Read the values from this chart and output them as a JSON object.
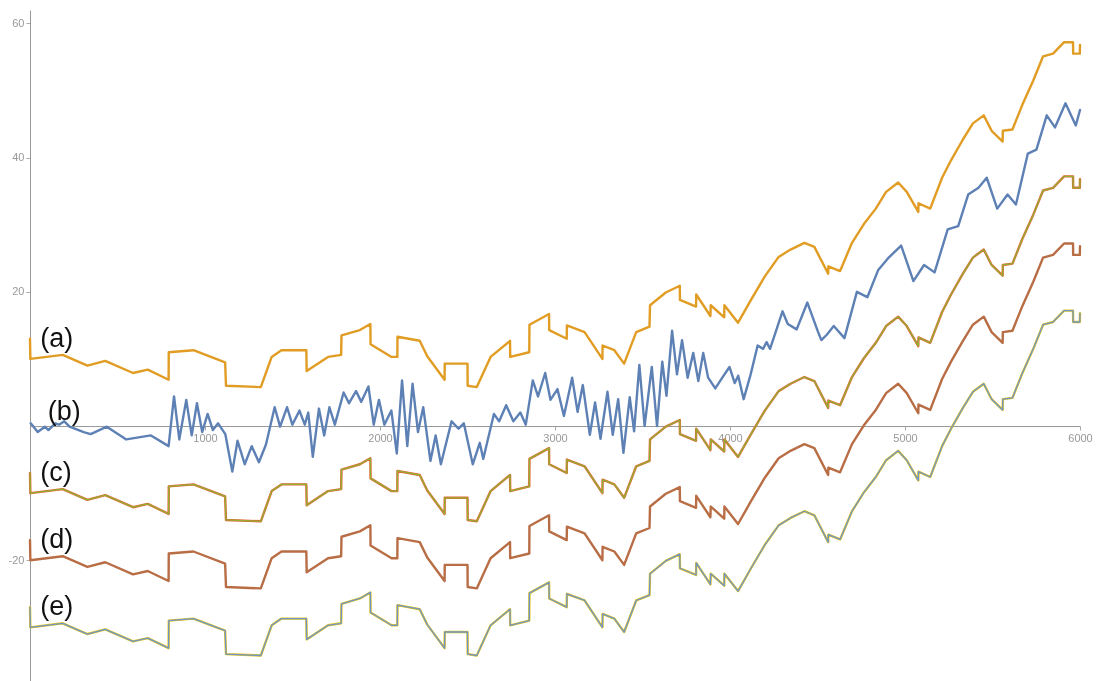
{
  "chart_data": {
    "type": "line",
    "x": [
      0,
      2,
      187,
      328,
      430,
      589,
      673,
      792,
      793,
      934,
      1115,
      1120,
      1319,
      1381,
      1437,
      1579,
      1581,
      1703,
      1778,
      1780,
      1885,
      1945,
      1946,
      2066,
      2099,
      2100,
      2227,
      2270,
      2369,
      2370,
      2500,
      2501,
      2553,
      2632,
      2743,
      2744,
      2853,
      2854,
      2966,
      2967,
      3067,
      3068,
      3169,
      3271,
      3272,
      3339,
      3395,
      3464,
      3540,
      3543,
      3633,
      3713,
      3714,
      3806,
      3807,
      3888,
      3890,
      3967,
      3968,
      4046,
      4120,
      4199,
      4278,
      4346,
      4425,
      4482,
      4561,
      4562,
      4629,
      4697,
      4765,
      4833,
      4892,
      4961,
      5010,
      5076,
      5077,
      5144,
      5212,
      5263,
      5331,
      5388,
      5450,
      5495,
      5558,
      5559,
      5614,
      5671,
      5733,
      5789,
      5846,
      5909,
      5960,
      5961,
      5999,
      6000
    ],
    "series": [
      {
        "color": "#e19c24",
        "values": [
          13.0,
          10.0,
          10.6,
          9.0,
          9.7,
          7.9,
          8.4,
          6.9,
          11.0,
          11.3,
          9.5,
          6.0,
          5.8,
          10.3,
          11.3,
          11.3,
          8.2,
          10.3,
          10.6,
          13.5,
          14.3,
          15.2,
          12.2,
          10.3,
          10.3,
          13.3,
          12.7,
          10.4,
          6.9,
          9.3,
          9.3,
          6.0,
          5.8,
          10.3,
          12.7,
          10.3,
          11.0,
          15.1,
          16.7,
          14.3,
          13.0,
          15.0,
          14.0,
          10.0,
          12.0,
          11.3,
          9.3,
          14.0,
          14.8,
          18.0,
          19.9,
          20.9,
          18.8,
          17.8,
          19.6,
          16.4,
          18.0,
          16.2,
          18.0,
          15.4,
          18.8,
          22.3,
          25.2,
          26.3,
          27.3,
          26.7,
          22.7,
          23.8,
          23.1,
          27.3,
          30.1,
          32.4,
          34.9,
          36.3,
          34.9,
          31.9,
          33.2,
          32.4,
          37.0,
          39.6,
          42.7,
          45.1,
          46.3,
          44.0,
          42.4,
          44.0,
          44.2,
          47.9,
          51.5,
          55.1,
          55.5,
          57.2,
          57.2,
          55.5,
          55.5,
          56.8
        ]
      },
      {
        "color": "#5e81b5",
        "x": [
          4,
          44,
          85,
          105,
          145,
          166,
          196,
          226,
          307,
          347,
          439,
          550,
          691,
          792,
          823,
          853,
          893,
          924,
          954,
          984,
          1015,
          1045,
          1075,
          1116,
          1156,
          1186,
          1227,
          1267,
          1308,
          1348,
          1398,
          1429,
          1469,
          1499,
          1540,
          1570,
          1590,
          1616,
          1651,
          1681,
          1711,
          1742,
          1792,
          1823,
          1863,
          1893,
          1934,
          1964,
          1994,
          2025,
          2065,
          2096,
          2126,
          2156,
          2186,
          2217,
          2247,
          2288,
          2318,
          2348,
          2409,
          2449,
          2479,
          2530,
          2570,
          2590,
          2651,
          2681,
          2721,
          2762,
          2802,
          2833,
          2873,
          2903,
          2944,
          2974,
          3014,
          3051,
          3098,
          3129,
          3159,
          3199,
          3229,
          3260,
          3300,
          3330,
          3361,
          3391,
          3427,
          3452,
          3482,
          3512,
          3553,
          3583,
          3613,
          3637,
          3669,
          3697,
          3726,
          3758,
          3790,
          3819,
          3847,
          3875,
          3916,
          3956,
          3997,
          4027,
          4047,
          4078,
          4118,
          4158,
          4189,
          4209,
          4229,
          4300,
          4330,
          4381,
          4442,
          4502,
          4522,
          4553,
          4593,
          4654,
          4725,
          4785,
          4846,
          4907,
          4978,
          5048,
          5109,
          5169,
          5244,
          5304,
          5361,
          5420,
          5467,
          5527,
          5586,
          5634,
          5702,
          5751,
          5810,
          5857,
          5917,
          5976,
          6000
        ],
        "values": [
          0.4,
          -0.9,
          -0.1,
          -0.6,
          0.4,
          0.2,
          0.7,
          -0.1,
          -0.9,
          -1.2,
          -0.1,
          -2.0,
          -1.4,
          -3.0,
          4.4,
          -2.0,
          3.9,
          -1.4,
          3.4,
          -0.9,
          1.8,
          -0.6,
          0.4,
          -1.2,
          -6.8,
          -2.2,
          -5.7,
          -3.0,
          -5.4,
          -2.8,
          2.8,
          -0.1,
          2.8,
          0.2,
          2.3,
          0.2,
          2.0,
          -4.6,
          2.6,
          -1.4,
          2.8,
          0.2,
          5.0,
          3.4,
          5.2,
          3.6,
          5.9,
          0.2,
          3.9,
          0.2,
          2.3,
          -4.1,
          6.8,
          -3.0,
          6.3,
          -0.9,
          2.8,
          -5.2,
          -1.4,
          -5.7,
          0.7,
          -0.4,
          0.4,
          -5.7,
          -2.5,
          -4.9,
          1.8,
          0.7,
          3.1,
          0.7,
          2.0,
          0.2,
          6.8,
          4.4,
          7.9,
          3.9,
          5.5,
          1.5,
          7.2,
          2.1,
          6.1,
          -1.3,
          3.5,
          -1.9,
          5.1,
          -1.3,
          4.0,
          -4.0,
          4.3,
          -0.8,
          9.1,
          0.0,
          8.8,
          0.0,
          9.6,
          4.5,
          14.2,
          7.7,
          12.8,
          7.2,
          10.9,
          6.7,
          10.9,
          7.2,
          5.6,
          7.2,
          8.8,
          6.4,
          7.5,
          4.0,
          7.7,
          12.0,
          11.5,
          12.5,
          11.5,
          17.1,
          15.2,
          14.4,
          18.4,
          14.1,
          12.8,
          13.6,
          14.9,
          13.1,
          20.0,
          19.2,
          23.2,
          25.1,
          26.9,
          21.6,
          24.0,
          22.9,
          29.3,
          29.8,
          34.5,
          35.5,
          37.0,
          32.4,
          34.5,
          33.0,
          40.6,
          41.2,
          46.3,
          44.5,
          48.1,
          44.8,
          47.1
        ]
      },
      {
        "color": "#eb6235",
        "values": [
          -7.0,
          -10.0,
          -9.4,
          -11.0,
          -10.3,
          -12.1,
          -11.6,
          -13.1,
          -9.0,
          -8.7,
          -10.5,
          -14.0,
          -14.2,
          -9.7,
          -8.7,
          -8.7,
          -11.8,
          -9.7,
          -9.4,
          -6.5,
          -5.7,
          -4.8,
          -7.8,
          -9.7,
          -9.7,
          -6.7,
          -7.3,
          -9.6,
          -13.1,
          -10.7,
          -10.7,
          -14.0,
          -14.2,
          -9.7,
          -7.3,
          -9.7,
          -9.0,
          -4.9,
          -3.3,
          -5.7,
          -7.0,
          -5.0,
          -6.0,
          -10.0,
          -8.0,
          -8.7,
          -10.7,
          -6.0,
          -5.2,
          -2.0,
          -0.1,
          0.9,
          -1.2,
          -2.2,
          -0.4,
          -3.6,
          -2.0,
          -3.8,
          -2.0,
          -4.6,
          -1.2,
          2.3,
          5.2,
          6.3,
          7.3,
          6.7,
          2.7,
          3.8,
          3.1,
          7.3,
          10.1,
          12.4,
          14.9,
          16.3,
          14.9,
          11.9,
          13.2,
          12.4,
          17.0,
          19.6,
          22.7,
          25.1,
          26.3,
          24.0,
          22.4,
          24.0,
          24.2,
          27.9,
          31.5,
          35.1,
          35.5,
          37.2,
          37.2,
          35.5,
          35.5,
          36.8
        ]
      },
      {
        "color": "#8fb032",
        "values": [
          -7.0,
          -10.0,
          -9.4,
          -11.0,
          -10.3,
          -12.1,
          -11.6,
          -13.1,
          -9.0,
          -8.7,
          -10.5,
          -14.0,
          -14.2,
          -9.7,
          -8.7,
          -8.7,
          -11.8,
          -9.7,
          -9.4,
          -6.5,
          -5.7,
          -4.8,
          -7.8,
          -9.7,
          -9.7,
          -6.7,
          -7.3,
          -9.6,
          -13.1,
          -10.7,
          -10.7,
          -14.0,
          -14.2,
          -9.7,
          -7.3,
          -9.7,
          -9.0,
          -4.9,
          -3.3,
          -5.7,
          -7.0,
          -5.0,
          -6.0,
          -10.0,
          -8.0,
          -8.7,
          -10.7,
          -6.0,
          -5.2,
          -2.0,
          -0.1,
          0.9,
          -1.2,
          -2.2,
          -0.4,
          -3.6,
          -2.0,
          -3.8,
          -2.0,
          -4.6,
          -1.2,
          2.3,
          5.2,
          6.3,
          7.3,
          6.7,
          2.7,
          3.8,
          3.1,
          7.3,
          10.1,
          12.4,
          14.9,
          16.3,
          14.9,
          11.9,
          13.2,
          12.4,
          17.0,
          19.6,
          22.7,
          25.1,
          26.3,
          24.0,
          22.4,
          24.0,
          24.2,
          27.9,
          31.5,
          35.1,
          35.5,
          37.2,
          37.2,
          35.5,
          35.5,
          36.8
        ]
      },
      {
        "color": "#b86d45",
        "values": [
          -17.0,
          -20.0,
          -19.4,
          -21.0,
          -20.3,
          -22.1,
          -21.6,
          -23.1,
          -19.0,
          -18.7,
          -20.5,
          -24.0,
          -24.2,
          -19.7,
          -18.7,
          -18.7,
          -21.8,
          -19.7,
          -19.4,
          -16.5,
          -15.7,
          -14.8,
          -17.8,
          -19.7,
          -19.7,
          -16.7,
          -17.3,
          -19.6,
          -23.1,
          -20.7,
          -20.7,
          -24.0,
          -24.2,
          -19.7,
          -17.3,
          -19.7,
          -19.0,
          -14.9,
          -13.3,
          -15.7,
          -17.0,
          -15.0,
          -16.0,
          -20.0,
          -18.0,
          -18.7,
          -20.7,
          -16.0,
          -15.2,
          -12.0,
          -10.1,
          -9.1,
          -11.2,
          -12.2,
          -10.4,
          -13.6,
          -12.0,
          -13.8,
          -12.0,
          -14.6,
          -11.2,
          -7.7,
          -4.8,
          -3.7,
          -2.7,
          -3.3,
          -7.3,
          -6.2,
          -6.9,
          -2.7,
          0.1,
          2.4,
          4.9,
          6.3,
          4.9,
          1.9,
          3.2,
          2.4,
          7.0,
          9.6,
          12.7,
          15.1,
          16.3,
          14.0,
          12.4,
          14.0,
          14.2,
          17.9,
          21.5,
          25.1,
          25.5,
          27.2,
          27.2,
          25.5,
          25.5,
          26.8
        ]
      },
      {
        "color": "#e6c619",
        "values": [
          -27.0,
          -30.0,
          -29.4,
          -31.0,
          -30.3,
          -32.1,
          -31.6,
          -33.1,
          -29.0,
          -28.7,
          -30.5,
          -34.0,
          -34.2,
          -29.7,
          -28.7,
          -28.7,
          -31.8,
          -29.7,
          -29.4,
          -26.5,
          -25.7,
          -24.8,
          -27.8,
          -29.7,
          -29.7,
          -26.7,
          -27.3,
          -29.6,
          -33.1,
          -30.7,
          -30.7,
          -34.0,
          -34.2,
          -29.7,
          -27.3,
          -29.7,
          -29.0,
          -24.9,
          -23.3,
          -25.7,
          -27.0,
          -25.0,
          -26.0,
          -30.0,
          -28.0,
          -28.7,
          -30.7,
          -26.0,
          -25.2,
          -22.0,
          -20.1,
          -19.1,
          -21.2,
          -22.2,
          -20.4,
          -23.6,
          -22.0,
          -23.8,
          -22.0,
          -24.6,
          -21.2,
          -17.7,
          -14.8,
          -13.7,
          -12.7,
          -13.3,
          -17.3,
          -16.2,
          -16.9,
          -12.7,
          -9.9,
          -7.6,
          -5.1,
          -3.7,
          -5.1,
          -8.1,
          -6.8,
          -7.6,
          -3.0,
          -0.4,
          2.7,
          5.1,
          6.3,
          4.0,
          2.4,
          4.0,
          4.2,
          7.9,
          11.5,
          15.1,
          15.5,
          17.2,
          17.2,
          15.5,
          15.5,
          16.8
        ]
      },
      {
        "color": "#6f94c7",
        "values": [
          -27.0,
          -30.0,
          -29.4,
          -31.0,
          -30.3,
          -32.1,
          -31.6,
          -33.1,
          -29.0,
          -28.7,
          -30.5,
          -34.0,
          -34.2,
          -29.7,
          -28.7,
          -28.7,
          -31.8,
          -29.7,
          -29.4,
          -26.5,
          -25.7,
          -24.8,
          -27.8,
          -29.7,
          -29.7,
          -26.7,
          -27.3,
          -29.6,
          -33.1,
          -30.7,
          -30.7,
          -34.0,
          -34.2,
          -29.7,
          -27.3,
          -29.7,
          -29.0,
          -24.9,
          -23.3,
          -25.7,
          -27.0,
          -25.0,
          -26.0,
          -30.0,
          -28.0,
          -28.7,
          -30.7,
          -26.0,
          -25.2,
          -22.0,
          -20.1,
          -19.1,
          -21.2,
          -22.2,
          -20.4,
          -23.6,
          -22.0,
          -23.8,
          -22.0,
          -24.6,
          -21.2,
          -17.7,
          -14.8,
          -13.7,
          -12.7,
          -13.3,
          -17.3,
          -16.2,
          -16.9,
          -12.7,
          -9.9,
          -7.6,
          -5.1,
          -3.7,
          -5.1,
          -8.1,
          -6.8,
          -7.6,
          -3.0,
          -0.4,
          2.7,
          5.1,
          6.3,
          4.0,
          2.4,
          4.0,
          4.2,
          7.9,
          11.5,
          15.1,
          15.5,
          17.2,
          17.2,
          15.5,
          15.5,
          16.8
        ]
      }
    ],
    "annotations": [
      "(a)",
      "(b)",
      "(c)",
      "(d)",
      "(e)"
    ],
    "xlim": [
      0,
      6000
    ],
    "ylim": [
      -38,
      62
    ],
    "xticks": [
      1000,
      2000,
      3000,
      4000,
      5000,
      6000
    ],
    "yticks": [
      -20,
      20,
      40,
      60
    ],
    "marker": "none",
    "line_style": "solid"
  }
}
